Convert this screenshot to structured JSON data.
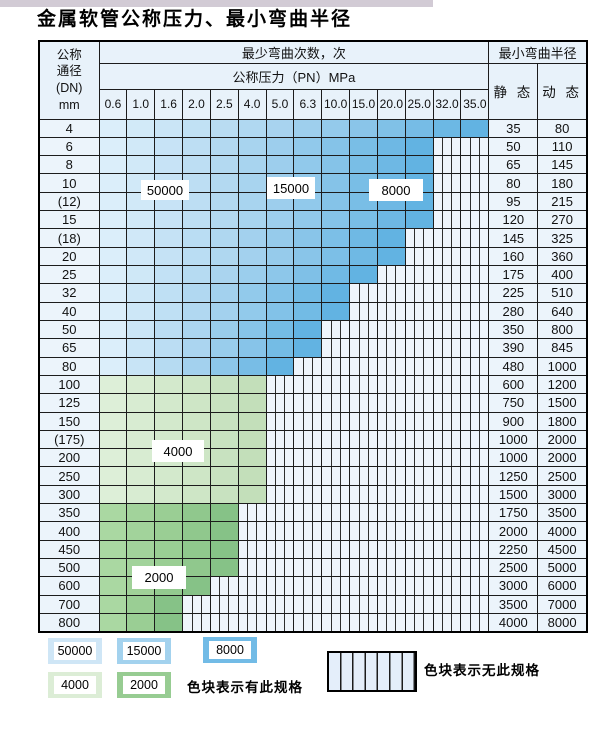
{
  "title": "金属软管公称压力、最小弯曲半径",
  "header": {
    "dn_label_lines": [
      "公称",
      "通径",
      "(DN)",
      "mm"
    ],
    "cycles_label": "最少弯曲次数，次",
    "pressure_label": "公称压力（PN）MPa",
    "pressure_columns": [
      "0.6",
      "1.0",
      "1.6",
      "2.0",
      "2.5",
      "4.0",
      "5.0",
      "6.3",
      "10.0",
      "15.0",
      "20.0",
      "25.0",
      "32.0",
      "35.0"
    ],
    "radius_label": "最小弯曲半径",
    "static_label": "静 态",
    "dynamic_label": "动 态"
  },
  "zones": {
    "blue": {
      "start": "#dbeefa",
      "mid": "#a9d4ef",
      "end": "#62b3e2"
    },
    "green_light": {
      "start": "#ddefd8",
      "mid": "#d2e8cb",
      "end": "#c3dfba"
    },
    "green_dark": {
      "start": "#aad8a2",
      "mid": "#9ccf95",
      "end": "#86c287"
    }
  },
  "rows": [
    {
      "dn": "4",
      "max_pn": "35.0",
      "zone": "blue",
      "static": "35",
      "dynamic": "80"
    },
    {
      "dn": "6",
      "max_pn": "25.0",
      "zone": "blue",
      "static": "50",
      "dynamic": "110"
    },
    {
      "dn": "8",
      "max_pn": "25.0",
      "zone": "blue",
      "static": "65",
      "dynamic": "145"
    },
    {
      "dn": "10",
      "max_pn": "25.0",
      "zone": "blue",
      "static": "80",
      "dynamic": "180"
    },
    {
      "dn": "(12)",
      "max_pn": "25.0",
      "zone": "blue",
      "static": "95",
      "dynamic": "215"
    },
    {
      "dn": "15",
      "max_pn": "25.0",
      "zone": "blue",
      "static": "120",
      "dynamic": "270"
    },
    {
      "dn": "(18)",
      "max_pn": "20.0",
      "zone": "blue",
      "static": "145",
      "dynamic": "325"
    },
    {
      "dn": "20",
      "max_pn": "20.0",
      "zone": "blue",
      "static": "160",
      "dynamic": "360"
    },
    {
      "dn": "25",
      "max_pn": "15.0",
      "zone": "blue",
      "static": "175",
      "dynamic": "400"
    },
    {
      "dn": "32",
      "max_pn": "10.0",
      "zone": "blue",
      "static": "225",
      "dynamic": "510"
    },
    {
      "dn": "40",
      "max_pn": "10.0",
      "zone": "blue",
      "static": "280",
      "dynamic": "640"
    },
    {
      "dn": "50",
      "max_pn": "6.3",
      "zone": "blue",
      "static": "350",
      "dynamic": "800"
    },
    {
      "dn": "65",
      "max_pn": "6.3",
      "zone": "blue",
      "static": "390",
      "dynamic": "845"
    },
    {
      "dn": "80",
      "max_pn": "5.0",
      "zone": "blue",
      "static": "480",
      "dynamic": "1000"
    },
    {
      "dn": "100",
      "max_pn": "4.0",
      "zone": "green_light",
      "static": "600",
      "dynamic": "1200"
    },
    {
      "dn": "125",
      "max_pn": "4.0",
      "zone": "green_light",
      "static": "750",
      "dynamic": "1500"
    },
    {
      "dn": "150",
      "max_pn": "4.0",
      "zone": "green_light",
      "static": "900",
      "dynamic": "1800"
    },
    {
      "dn": "(175)",
      "max_pn": "4.0",
      "zone": "green_light",
      "static": "1000",
      "dynamic": "2000"
    },
    {
      "dn": "200",
      "max_pn": "4.0",
      "zone": "green_light",
      "static": "1000",
      "dynamic": "2000"
    },
    {
      "dn": "250",
      "max_pn": "4.0",
      "zone": "green_light",
      "static": "1250",
      "dynamic": "2500"
    },
    {
      "dn": "300",
      "max_pn": "4.0",
      "zone": "green_light",
      "static": "1500",
      "dynamic": "3000"
    },
    {
      "dn": "350",
      "max_pn": "2.5",
      "zone": "green_dark",
      "static": "1750",
      "dynamic": "3500"
    },
    {
      "dn": "400",
      "max_pn": "2.5",
      "zone": "green_dark",
      "static": "2000",
      "dynamic": "4000"
    },
    {
      "dn": "450",
      "max_pn": "2.5",
      "zone": "green_dark",
      "static": "2250",
      "dynamic": "4500"
    },
    {
      "dn": "500",
      "max_pn": "2.5",
      "zone": "green_dark",
      "static": "2500",
      "dynamic": "5000"
    },
    {
      "dn": "600",
      "max_pn": "2.0",
      "zone": "green_dark",
      "static": "3000",
      "dynamic": "6000"
    },
    {
      "dn": "700",
      "max_pn": "1.6",
      "zone": "green_dark",
      "static": "3500",
      "dynamic": "7000"
    },
    {
      "dn": "800",
      "max_pn": "1.6",
      "zone": "green_dark",
      "static": "4000",
      "dynamic": "8000"
    }
  ],
  "overlays": [
    {
      "id": "50000",
      "text": "50000"
    },
    {
      "id": "15000",
      "text": "15000"
    },
    {
      "id": "8000",
      "text": "8000"
    },
    {
      "id": "4000",
      "text": "4000"
    },
    {
      "id": "2000",
      "text": "2000"
    }
  ],
  "legend": {
    "items": [
      {
        "value": "50000",
        "color": "#cfe6f6"
      },
      {
        "value": "15000",
        "color": "#a3d2ee"
      },
      {
        "value": "8000",
        "color": "#72bbe6"
      },
      {
        "value": "4000",
        "color": "#dcedd6"
      },
      {
        "value": "2000",
        "color": "#97cc92"
      }
    ],
    "has_spec_note": "色块表示有此规格",
    "no_spec_note": "色块表示无此规格"
  }
}
